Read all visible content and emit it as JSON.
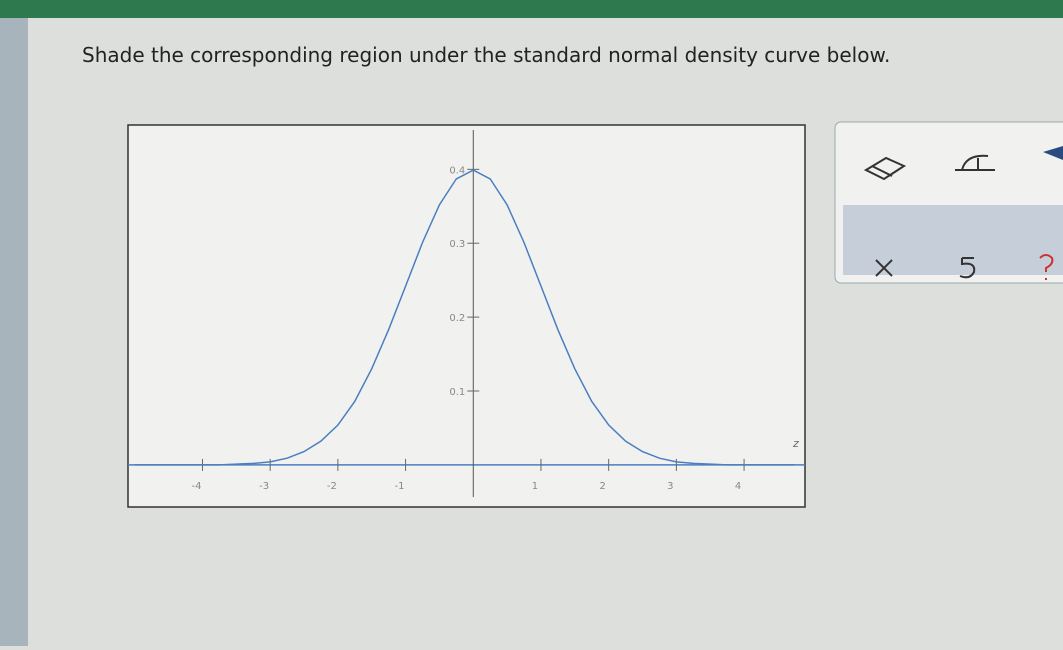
{
  "instruction": "Shade the corresponding region under the standard normal density curve below.",
  "chart_data": {
    "type": "line",
    "xlabel": "z",
    "x": [
      -5,
      -4.75,
      -4.5,
      -4.25,
      -4,
      -3.75,
      -3.5,
      -3.25,
      -3,
      -2.75,
      -2.5,
      -2.25,
      -2,
      -1.75,
      -1.5,
      -1.25,
      -1,
      -0.75,
      -0.5,
      -0.25,
      0,
      0.25,
      0.5,
      0.75,
      1,
      1.25,
      1.5,
      1.75,
      2,
      2.25,
      2.5,
      2.75,
      3,
      3.25,
      3.5,
      3.75,
      4,
      4.25,
      4.5,
      4.75
    ],
    "series": [
      {
        "color": "#4a7ec0",
        "values": [
          0,
          0,
          0,
          0,
          0,
          0,
          0.001,
          0.002,
          0.004,
          0.009,
          0.018,
          0.032,
          0.054,
          0.086,
          0.13,
          0.183,
          0.242,
          0.301,
          0.352,
          0.387,
          0.399,
          0.387,
          0.352,
          0.301,
          0.242,
          0.183,
          0.13,
          0.086,
          0.054,
          0.032,
          0.018,
          0.009,
          0.004,
          0.002,
          0.001,
          0,
          0,
          0,
          0,
          0
        ]
      }
    ],
    "xlim": [
      -5.1,
      4.9
    ],
    "ylim": [
      -0.057,
      0.46
    ],
    "xticks": [
      -4,
      -3,
      -2,
      -1,
      1,
      2,
      3,
      4
    ],
    "yticks": [
      0.1,
      0.2,
      0.3,
      0.4
    ]
  }
}
